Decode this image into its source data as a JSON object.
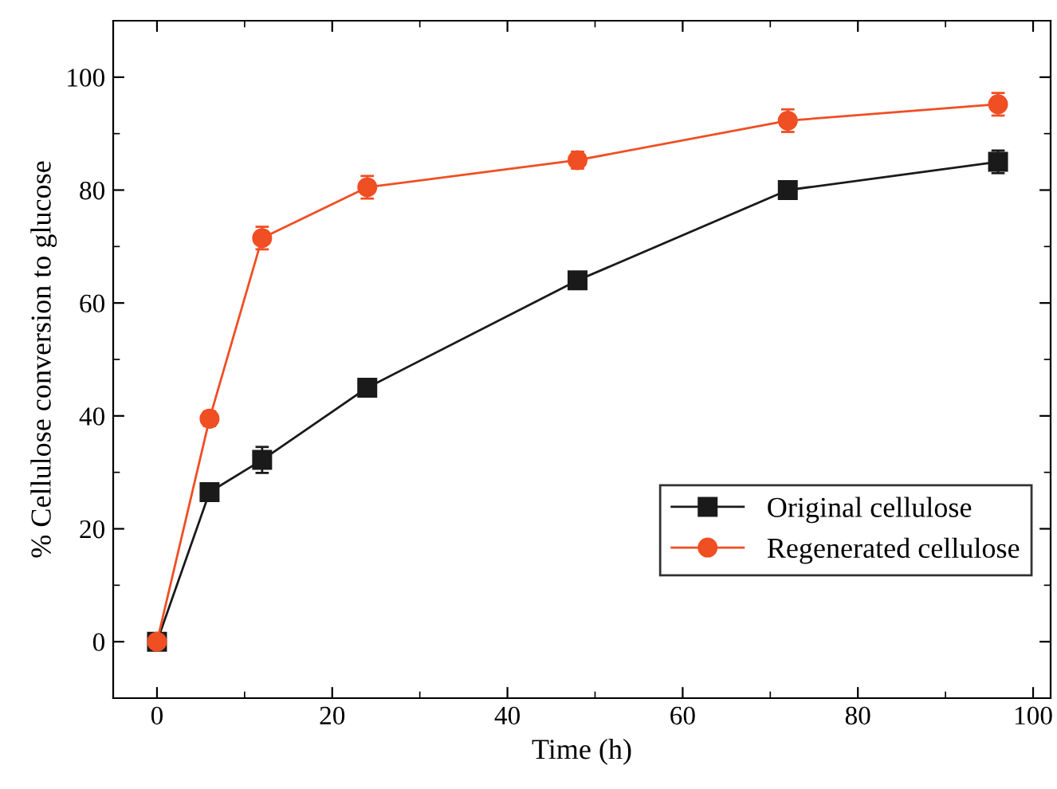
{
  "chart_data": {
    "type": "line",
    "xlabel": "Time (h)",
    "ylabel": "% Cellulose conversion to glucose",
    "x": [
      0,
      6,
      12,
      24,
      48,
      72,
      96
    ],
    "series": [
      {
        "name": "Original cellulose",
        "color": "#1a1a1a",
        "marker": "square",
        "values": [
          0,
          26.5,
          32.2,
          45,
          64,
          80,
          85
        ],
        "errors": [
          null,
          1,
          2.3,
          1.3,
          1.4,
          0.5,
          2
        ]
      },
      {
        "name": "Regenerated cellulose",
        "color": "#f04e23",
        "marker": "circle",
        "values": [
          0,
          39.5,
          71.5,
          80.5,
          85.3,
          92.3,
          95.2
        ],
        "errors": [
          null,
          1.3,
          2,
          2,
          1.5,
          2,
          2
        ]
      }
    ],
    "xlim": [
      -5,
      102
    ],
    "xticks": [
      0,
      20,
      40,
      60,
      80,
      100
    ],
    "ylim": [
      -10,
      110
    ],
    "yticks": [
      0,
      20,
      40,
      60,
      80,
      100
    ],
    "legend": "bottom right",
    "grid": false,
    "line_style": "solid"
  }
}
